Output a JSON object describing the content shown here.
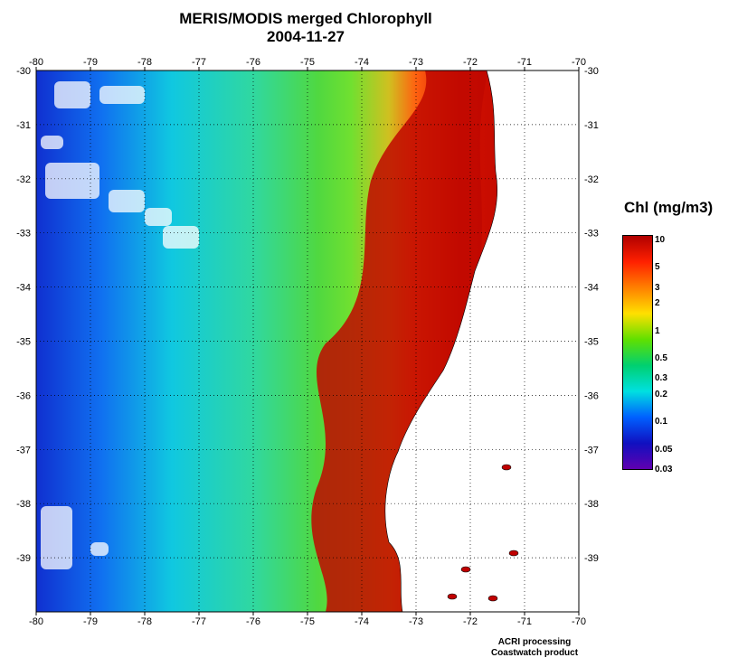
{
  "title": "MERIS/MODIS merged Chlorophyll",
  "subtitle": "2004-11-27",
  "map": {
    "lon_ticks": [
      "-80",
      "-79",
      "-78",
      "-77",
      "-76",
      "-75",
      "-74",
      "-73",
      "-72",
      "-71",
      "-70"
    ],
    "lat_ticks": [
      "-30",
      "-31",
      "-32",
      "-33",
      "-34",
      "-35",
      "-36",
      "-37",
      "-38",
      "-39"
    ],
    "lon_range": [
      -80,
      -70
    ],
    "lat_range": [
      -40,
      -30
    ],
    "grid": "dotted",
    "land_color": "#ffffff"
  },
  "colorbar": {
    "title": "Chl (mg/m3)",
    "scale": "log",
    "range": [
      0.03,
      10
    ],
    "labels": [
      "10",
      "5",
      "3",
      "2",
      "1",
      "0.5",
      "0.3",
      "0.2",
      "0.1",
      "0.05",
      "0.03"
    ],
    "colors": [
      "#b00000",
      "#ff2000",
      "#ff8000",
      "#ffe000",
      "#60e000",
      "#00d070",
      "#00e0e0",
      "#0060ff",
      "#1010c0",
      "#6000b0"
    ]
  },
  "credits": {
    "line1": "ACRI processing",
    "line2": "Coastwatch product"
  }
}
